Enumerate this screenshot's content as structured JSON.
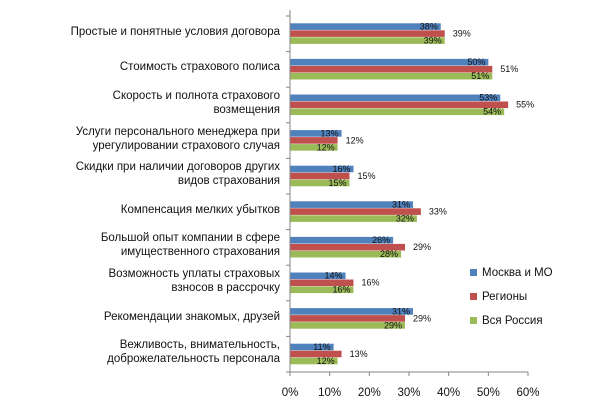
{
  "chart_data": {
    "type": "bar",
    "orientation": "horizontal",
    "categories": [
      "Простые и понятные условия договора",
      "Стоимость страхового полиса",
      "Скорость и полнота страхового возмещения",
      "Услуги персонального менеджера при урегулировании страхового случая",
      "Скидки при наличии договоров других видов страхования",
      "Компенсация мелких убытков",
      "Большой опыт компании в сфере имущественного страхования",
      "Возможность уплаты страховых взносов в рассрочку",
      "Рекомендации знакомых, друзей",
      "Вежливость, внимательность, доброжелательность персонала"
    ],
    "category_lines": [
      [
        "Простые и понятные условия договора"
      ],
      [
        "Стоимость страхового полиса"
      ],
      [
        "Скорость и полнота страхового",
        "возмещения"
      ],
      [
        "Услуги персонального менеджера при",
        "урегулировании страхового случая"
      ],
      [
        "Скидки при наличии договоров других",
        "видов страхования"
      ],
      [
        "Компенсация мелких убытков"
      ],
      [
        "Большой опыт компании в сфере",
        "имущественного страхования"
      ],
      [
        "Возможность уплаты страховых",
        "взносов в рассрочку"
      ],
      [
        "Рекомендации знакомых, друзей"
      ],
      [
        "Вежливость, внимательность,",
        "доброжелательность персонала"
      ]
    ],
    "series": [
      {
        "name": "Москва и МО",
        "color": "#4f81bd",
        "values": [
          38,
          50,
          53,
          13,
          16,
          31,
          26,
          14,
          31,
          11
        ]
      },
      {
        "name": "Регионы",
        "color": "#c0504d",
        "values": [
          39,
          51,
          55,
          12,
          15,
          33,
          29,
          16,
          29,
          13
        ]
      },
      {
        "name": "Вся Россия",
        "color": "#9bbb59",
        "values": [
          39,
          51,
          54,
          12,
          15,
          32,
          28,
          16,
          29,
          12
        ]
      }
    ],
    "value_suffix": "%",
    "xlim": [
      0,
      60
    ],
    "xticks": [
      "0%",
      "10%",
      "20%",
      "30%",
      "40%",
      "50%",
      "60%"
    ],
    "legend_position": "right",
    "grid": false
  }
}
